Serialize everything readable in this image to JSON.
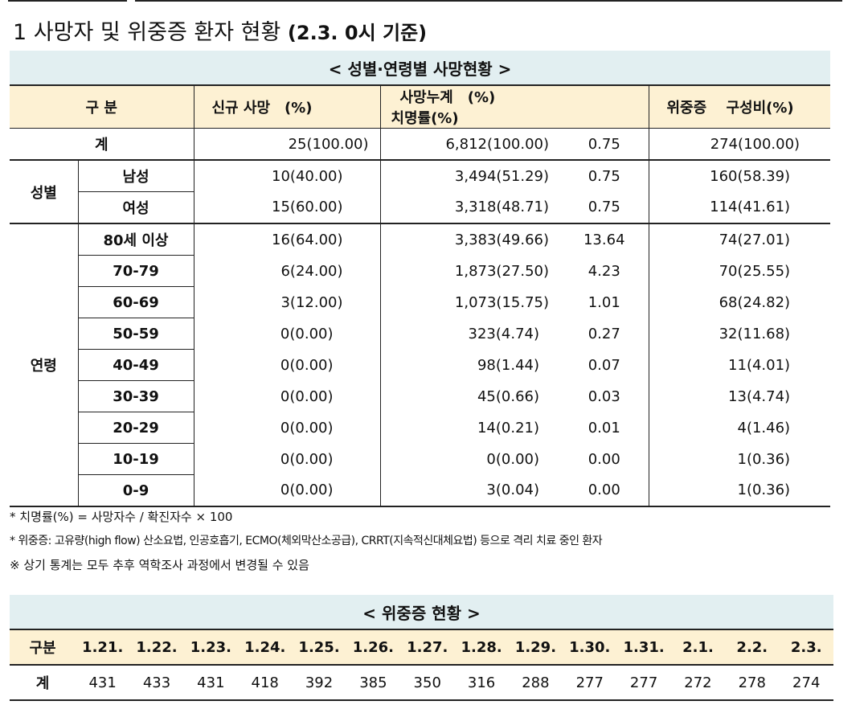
{
  "title": {
    "prefix": "1 사망자 및 위중증 환자 현황 ",
    "date": "(2.3. 0시 기준)"
  },
  "table1": {
    "caption": "< 성별·연령별 사망현황 >",
    "headers": {
      "category": "구 분",
      "new_deaths": "신규 사망　(%)",
      "cum_deaths": "사망누계　(%)",
      "fatality": "치명률(%)",
      "critical": "위중증　 구성비(%)"
    },
    "total": {
      "label": "계",
      "new": "25(100.00)",
      "cum": "6,812(100.00)",
      "rate": "0.75",
      "crit": "274(100.00)"
    },
    "sex_group": "성별",
    "sex_rows": [
      {
        "label": "남성",
        "new": "10(40.00)",
        "cum": "3,494(51.29)",
        "rate": "0.75",
        "crit": "160(58.39)"
      },
      {
        "label": "여성",
        "new": "15(60.00)",
        "cum": "3,318(48.71)",
        "rate": "0.75",
        "crit": "114(41.61)"
      }
    ],
    "age_group": "연령",
    "age_rows": [
      {
        "label": "80세 이상",
        "new": "16(64.00)",
        "cum": "3,383(49.66)",
        "rate": "13.64",
        "crit": "74(27.01)"
      },
      {
        "label": "70-79",
        "new": "6(24.00)",
        "cum": "1,873(27.50)",
        "rate": "4.23",
        "crit": "70(25.55)"
      },
      {
        "label": "60-69",
        "new": "3(12.00)",
        "cum": "1,073(15.75)",
        "rate": "1.01",
        "crit": "68(24.82)"
      },
      {
        "label": "50-59",
        "new": "0(0.00)",
        "cum": "323(4.74)",
        "rate": "0.27",
        "crit": "32(11.68)"
      },
      {
        "label": "40-49",
        "new": "0(0.00)",
        "cum": "98(1.44)",
        "rate": "0.07",
        "crit": "11(4.01)"
      },
      {
        "label": "30-39",
        "new": "0(0.00)",
        "cum": "45(0.66)",
        "rate": "0.03",
        "crit": "13(4.74)"
      },
      {
        "label": "20-29",
        "new": "0(0.00)",
        "cum": "14(0.21)",
        "rate": "0.01",
        "crit": "4(1.46)"
      },
      {
        "label": "10-19",
        "new": "0(0.00)",
        "cum": "0(0.00)",
        "rate": "0.00",
        "crit": "1(0.36)"
      },
      {
        "label": "0-9",
        "new": "0(0.00)",
        "cum": "3(0.04)",
        "rate": "0.00",
        "crit": "1(0.36)"
      }
    ]
  },
  "notes": [
    "* 치명률(%) = 사망자수 / 확진자수 × 100",
    "* 위중증: 고유량(high flow) 산소요법, 인공호흡기, ECMO(체외막산소공급), CRRT(지속적신대체요법) 등으로 격리 치료 중인 환자",
    "※ 상기 통계는 모두 추후 역학조사 과정에서 변경될 수 있음"
  ],
  "table2": {
    "caption": "< 위중증 현황 >",
    "header_label": "구분",
    "dates": [
      "1.21.",
      "1.22.",
      "1.23.",
      "1.24.",
      "1.25.",
      "1.26.",
      "1.27.",
      "1.28.",
      "1.29.",
      "1.30.",
      "1.31.",
      "2.1.",
      "2.2.",
      "2.3."
    ],
    "row_label": "계",
    "values": [
      "431",
      "433",
      "431",
      "418",
      "392",
      "385",
      "350",
      "316",
      "288",
      "277",
      "277",
      "272",
      "278",
      "274"
    ]
  },
  "colors": {
    "caption_bg": "#e2eff1",
    "header_bg": "#fdf1d3",
    "rule": "#222222"
  }
}
